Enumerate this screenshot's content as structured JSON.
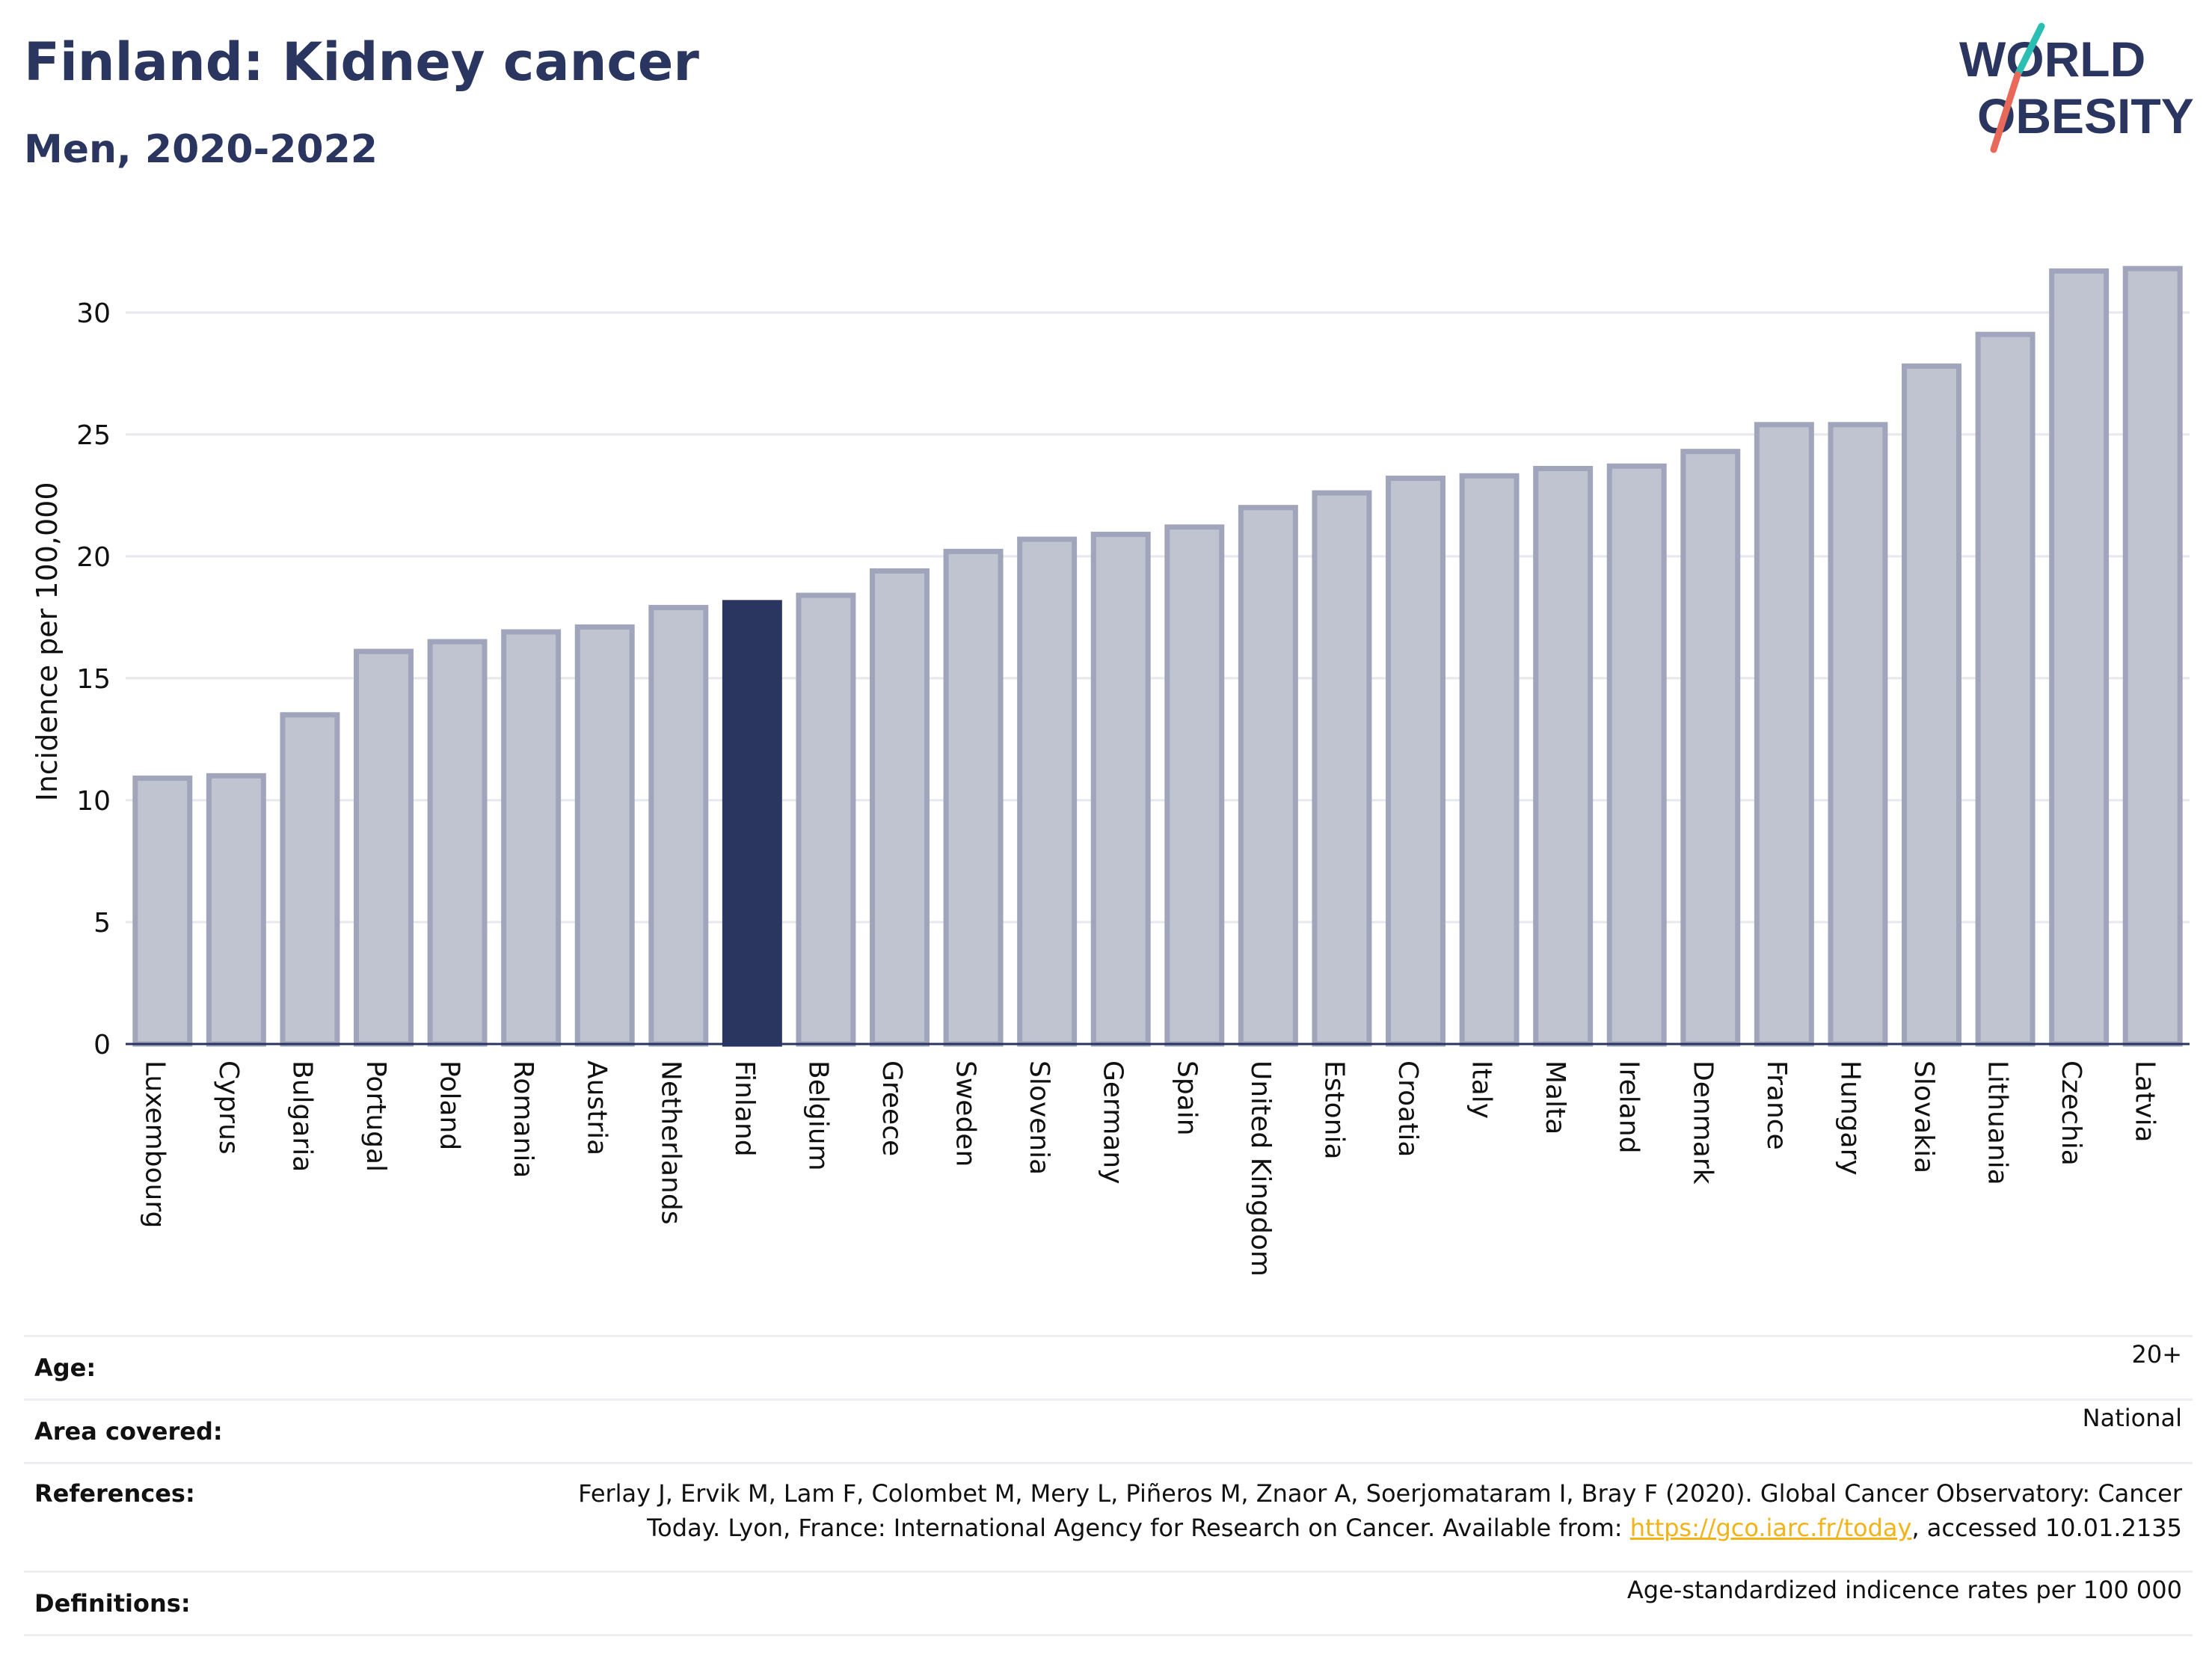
{
  "header": {
    "title": "Finland: Kidney cancer",
    "subtitle": "Men, 2020-2022"
  },
  "logo": {
    "line1": "WORLD",
    "line2": "OBESITY",
    "colors": {
      "text": "#2a3560",
      "slash_top": "#2bbfb3",
      "slash_bottom": "#e8685a"
    }
  },
  "chart_data": {
    "type": "bar",
    "title": "Finland: Kidney cancer",
    "subtitle": "Men, 2020-2022",
    "ylabel": "Incidence per 100,000",
    "xlabel": "",
    "ylim": [
      0,
      33
    ],
    "yticks": [
      0,
      5,
      10,
      15,
      20,
      25,
      30
    ],
    "grid": true,
    "highlight": "Finland",
    "colors": {
      "default_fill": "#c0c3d0",
      "default_stroke": "#a0a5bb",
      "highlight_fill": "#2a3560",
      "grid": "#e6e8ee",
      "axis": "#2a3560"
    },
    "categories": [
      "Luxembourg",
      "Cyprus",
      "Bulgaria",
      "Portugal",
      "Poland",
      "Romania",
      "Austria",
      "Netherlands",
      "Finland",
      "Belgium",
      "Greece",
      "Sweden",
      "Slovenia",
      "Germany",
      "Spain",
      "United Kingdom",
      "Estonia",
      "Croatia",
      "Italy",
      "Malta",
      "Ireland",
      "Denmark",
      "France",
      "Hungary",
      "Slovakia",
      "Lithuania",
      "Czechia",
      "Latvia"
    ],
    "values": [
      10.9,
      11.0,
      13.5,
      16.1,
      16.5,
      16.9,
      17.1,
      17.9,
      18.1,
      18.4,
      19.4,
      20.2,
      20.7,
      20.9,
      21.2,
      22.0,
      22.6,
      23.2,
      23.3,
      23.6,
      23.7,
      24.3,
      25.4,
      25.4,
      27.8,
      29.1,
      31.7,
      31.8
    ]
  },
  "meta": {
    "age_label": "Age:",
    "age_value": "20+",
    "area_label": "Area covered:",
    "area_value": "National",
    "refs_label": "References:",
    "refs_line1": "Ferlay J, Ervik M, Lam F, Colombet M, Mery L, Piñeros M, Znaor A, Soerjomataram I, Bray F (2020). Global Cancer Observatory: Cancer",
    "refs_line2_pre": "Today. Lyon, France: International Agency for Research on Cancer. Available from: ",
    "refs_link": "https://gco.iarc.fr/today",
    "refs_line2_post": ", accessed 10.01.2135",
    "defs_label": "Definitions:",
    "defs_value": "Age-standardized indicence rates per 100 000"
  }
}
